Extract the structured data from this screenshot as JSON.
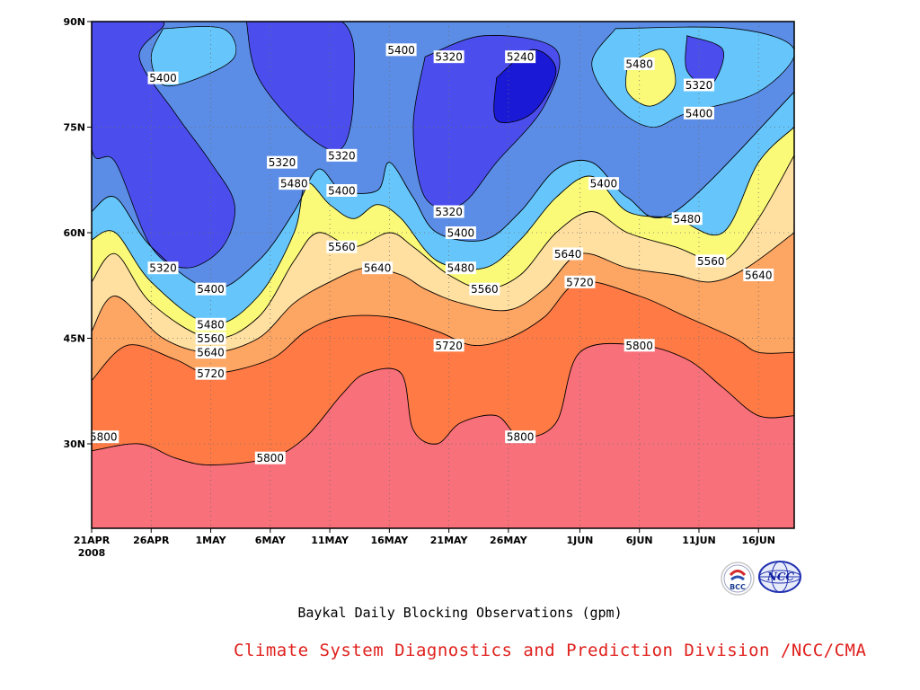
{
  "chart_data": {
    "type": "contour",
    "title": "Baykal Daily Blocking Observations (gpm)",
    "credit": "Climate System Diagnostics and Prediction Division /NCC/CMA",
    "y_axis": {
      "range": [
        18,
        90
      ],
      "ticks": [
        {
          "value": 90,
          "label": "90N"
        },
        {
          "value": 75,
          "label": "75N"
        },
        {
          "value": 60,
          "label": "60N"
        },
        {
          "value": 45,
          "label": "45N"
        },
        {
          "value": 30,
          "label": "30N"
        }
      ]
    },
    "x_axis": {
      "range": [
        "2008-04-21",
        "2008-06-19"
      ],
      "ticks": [
        {
          "date": "2008-04-21",
          "label": "21APR",
          "sublabel": "2008"
        },
        {
          "date": "2008-04-26",
          "label": "26APR"
        },
        {
          "date": "2008-05-01",
          "label": "1MAY"
        },
        {
          "date": "2008-05-06",
          "label": "6MAY"
        },
        {
          "date": "2008-05-11",
          "label": "11MAY"
        },
        {
          "date": "2008-05-16",
          "label": "16MAY"
        },
        {
          "date": "2008-05-21",
          "label": "21MAY"
        },
        {
          "date": "2008-05-26",
          "label": "26MAY"
        },
        {
          "date": "2008-06-01",
          "label": "1JUN"
        },
        {
          "date": "2008-06-06",
          "label": "6JUN"
        },
        {
          "date": "2008-06-11",
          "label": "11JUN"
        },
        {
          "date": "2008-06-16",
          "label": "16JUN"
        }
      ]
    },
    "grid": "dotted",
    "levels": [
      {
        "value": 5240,
        "color": "#1a19d6"
      },
      {
        "value": 5320,
        "color": "#4b4ded"
      },
      {
        "value": 5400,
        "color": "#5b8de6"
      },
      {
        "value": 5480,
        "color": "#66c6fb"
      },
      {
        "value": 5560,
        "color": "#fafa78"
      },
      {
        "value": 5640,
        "color": "#ffe0a0"
      },
      {
        "value": 5720,
        "color": "#fda563"
      },
      {
        "value": 5800,
        "color": "#ff7a45"
      },
      {
        "value": 5880,
        "color": "#f8707a"
      }
    ],
    "contours": [
      {
        "value": 5800,
        "points": [
          [
            "2008-04-21",
            29
          ],
          [
            "2008-04-25",
            30
          ],
          [
            "2008-04-28",
            28
          ],
          [
            "2008-05-01",
            27
          ],
          [
            "2008-05-06",
            28
          ],
          [
            "2008-05-09",
            31
          ],
          [
            "2008-05-12",
            37
          ],
          [
            "2008-05-14",
            40
          ],
          [
            "2008-05-17",
            40
          ],
          [
            "2008-05-18",
            32
          ],
          [
            "2008-05-20",
            30
          ],
          [
            "2008-05-22",
            33
          ],
          [
            "2008-05-25",
            34
          ],
          [
            "2008-05-27",
            31
          ],
          [
            "2008-05-30",
            33
          ],
          [
            "2008-06-01",
            43
          ],
          [
            "2008-06-06",
            44
          ],
          [
            "2008-06-10",
            42
          ],
          [
            "2008-06-13",
            38
          ],
          [
            "2008-06-16",
            34
          ],
          [
            "2008-06-19",
            34
          ]
        ]
      },
      {
        "value": 5720,
        "points": [
          [
            "2008-04-21",
            39
          ],
          [
            "2008-04-24",
            44
          ],
          [
            "2008-04-28",
            42
          ],
          [
            "2008-05-01",
            40
          ],
          [
            "2008-05-06",
            42
          ],
          [
            "2008-05-09",
            46
          ],
          [
            "2008-05-12",
            48
          ],
          [
            "2008-05-16",
            48
          ],
          [
            "2008-05-20",
            46
          ],
          [
            "2008-05-23",
            44
          ],
          [
            "2008-05-26",
            45
          ],
          [
            "2008-05-29",
            48
          ],
          [
            "2008-06-01",
            53
          ],
          [
            "2008-06-06",
            51
          ],
          [
            "2008-06-10",
            48
          ],
          [
            "2008-06-14",
            45
          ],
          [
            "2008-06-16",
            43
          ],
          [
            "2008-06-19",
            43
          ]
        ]
      },
      {
        "value": 5640,
        "points": [
          [
            "2008-04-21",
            46
          ],
          [
            "2008-04-23",
            51
          ],
          [
            "2008-04-27",
            45
          ],
          [
            "2008-05-01",
            43
          ],
          [
            "2008-05-05",
            45
          ],
          [
            "2008-05-08",
            50
          ],
          [
            "2008-05-11",
            53
          ],
          [
            "2008-05-14",
            55
          ],
          [
            "2008-05-17",
            54
          ],
          [
            "2008-05-19",
            52
          ],
          [
            "2008-05-22",
            50
          ],
          [
            "2008-05-26",
            49
          ],
          [
            "2008-05-29",
            52
          ],
          [
            "2008-06-01",
            57
          ],
          [
            "2008-06-05",
            55
          ],
          [
            "2008-06-09",
            54
          ],
          [
            "2008-06-12",
            53
          ],
          [
            "2008-06-15",
            55
          ],
          [
            "2008-06-19",
            60
          ]
        ]
      },
      {
        "value": 5560,
        "points": [
          [
            "2008-04-21",
            53
          ],
          [
            "2008-04-23",
            57
          ],
          [
            "2008-04-26",
            50
          ],
          [
            "2008-05-01",
            45
          ],
          [
            "2008-05-05",
            48
          ],
          [
            "2008-05-08",
            56
          ],
          [
            "2008-05-10",
            60
          ],
          [
            "2008-05-13",
            58
          ],
          [
            "2008-05-16",
            60
          ],
          [
            "2008-05-18",
            58
          ],
          [
            "2008-05-21",
            54
          ],
          [
            "2008-05-24",
            52
          ],
          [
            "2008-05-27",
            54
          ],
          [
            "2008-05-30",
            60
          ],
          [
            "2008-06-02",
            63
          ],
          [
            "2008-06-05",
            60
          ],
          [
            "2008-06-09",
            58
          ],
          [
            "2008-06-13",
            56
          ],
          [
            "2008-06-16",
            62
          ],
          [
            "2008-06-19",
            71
          ]
        ]
      },
      {
        "value": 5480,
        "points": [
          [
            "2008-04-21",
            59
          ],
          [
            "2008-04-23",
            60
          ],
          [
            "2008-04-26",
            53
          ],
          [
            "2008-05-01",
            47
          ],
          [
            "2008-05-05",
            51
          ],
          [
            "2008-05-08",
            60
          ],
          [
            "2008-05-09",
            67
          ],
          [
            "2008-05-11",
            64
          ],
          [
            "2008-05-13",
            62
          ],
          [
            "2008-05-15",
            64
          ],
          [
            "2008-05-17",
            62
          ],
          [
            "2008-05-20",
            56
          ],
          [
            "2008-05-24",
            55
          ],
          [
            "2008-05-27",
            59
          ],
          [
            "2008-05-30",
            65
          ],
          [
            "2008-06-02",
            68
          ],
          [
            "2008-06-05",
            63
          ],
          [
            "2008-06-09",
            62
          ],
          [
            "2008-06-13",
            60
          ],
          [
            "2008-06-16",
            70
          ],
          [
            "2008-06-19",
            75
          ]
        ]
      },
      {
        "value": 5400,
        "points": [
          [
            "2008-04-21",
            63
          ],
          [
            "2008-04-23",
            65
          ],
          [
            "2008-04-26",
            58
          ],
          [
            "2008-05-01",
            52
          ],
          [
            "2008-05-05",
            56
          ],
          [
            "2008-05-08",
            63
          ],
          [
            "2008-05-10",
            69
          ],
          [
            "2008-05-12",
            66
          ],
          [
            "2008-05-15",
            66
          ],
          [
            "2008-05-16",
            70
          ],
          [
            "2008-05-18",
            65
          ],
          [
            "2008-05-20",
            60
          ],
          [
            "2008-05-24",
            59
          ],
          [
            "2008-05-27",
            63
          ],
          [
            "2008-05-30",
            69
          ],
          [
            "2008-06-02",
            70
          ],
          [
            "2008-06-05",
            65
          ],
          [
            "2008-06-09",
            63
          ],
          [
            "2008-06-19",
            80
          ]
        ]
      }
    ],
    "contour_labels": [
      {
        "text": "5800",
        "date": "2008-04-22",
        "lat": 31
      },
      {
        "text": "5800",
        "date": "2008-05-06",
        "lat": 28
      },
      {
        "text": "5800",
        "date": "2008-05-27",
        "lat": 31
      },
      {
        "text": "5800",
        "date": "2008-06-06",
        "lat": 44
      },
      {
        "text": "5720",
        "date": "2008-05-01",
        "lat": 40
      },
      {
        "text": "5720",
        "date": "2008-05-21",
        "lat": 44
      },
      {
        "text": "5720",
        "date": "2008-06-01",
        "lat": 53
      },
      {
        "text": "5640",
        "date": "2008-05-01",
        "lat": 43
      },
      {
        "text": "5640",
        "date": "2008-05-15",
        "lat": 55
      },
      {
        "text": "5640",
        "date": "2008-05-31",
        "lat": 57
      },
      {
        "text": "5640",
        "date": "2008-06-16",
        "lat": 54
      },
      {
        "text": "5560",
        "date": "2008-05-01",
        "lat": 45
      },
      {
        "text": "5560",
        "date": "2008-05-12",
        "lat": 58
      },
      {
        "text": "5560",
        "date": "2008-05-24",
        "lat": 52
      },
      {
        "text": "5560",
        "date": "2008-06-12",
        "lat": 56
      },
      {
        "text": "5480",
        "date": "2008-05-01",
        "lat": 47
      },
      {
        "text": "5480",
        "date": "2008-05-08",
        "lat": 67
      },
      {
        "text": "5480",
        "date": "2008-05-22",
        "lat": 55
      },
      {
        "text": "5480",
        "date": "2008-06-06",
        "lat": 84
      },
      {
        "text": "5480",
        "date": "2008-06-10",
        "lat": 62
      },
      {
        "text": "5400",
        "date": "2008-04-27",
        "lat": 82
      },
      {
        "text": "5400",
        "date": "2008-05-01",
        "lat": 52
      },
      {
        "text": "5400",
        "date": "2008-05-12",
        "lat": 66
      },
      {
        "text": "5400",
        "date": "2008-05-17",
        "lat": 86
      },
      {
        "text": "5400",
        "date": "2008-05-22",
        "lat": 60
      },
      {
        "text": "5400",
        "date": "2008-06-03",
        "lat": 67
      },
      {
        "text": "5400",
        "date": "2008-06-11",
        "lat": 77
      },
      {
        "text": "5320",
        "date": "2008-04-27",
        "lat": 55
      },
      {
        "text": "5320",
        "date": "2008-05-07",
        "lat": 70
      },
      {
        "text": "5320",
        "date": "2008-05-12",
        "lat": 71
      },
      {
        "text": "5320",
        "date": "2008-05-21",
        "lat": 85
      },
      {
        "text": "5320",
        "date": "2008-05-21",
        "lat": 63
      },
      {
        "text": "5320",
        "date": "2008-06-11",
        "lat": 81
      },
      {
        "text": "5240",
        "date": "2008-05-27",
        "lat": 85
      }
    ]
  },
  "logos": {
    "left": "BCC",
    "right": "NCC"
  }
}
